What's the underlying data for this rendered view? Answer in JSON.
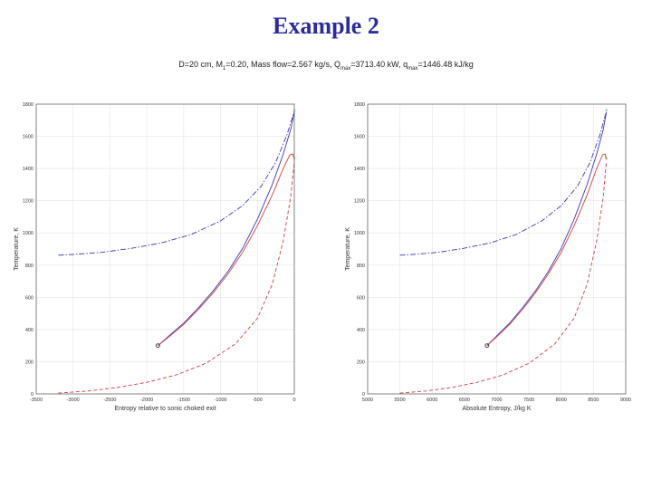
{
  "slide": {
    "title": "Example 2"
  },
  "figure": {
    "title_parts": [
      "D=20 cm, M",
      "1",
      "=0.20, Mass flow=2.567 kg/s, Q",
      "max",
      "=3713.40 kW, q",
      "max",
      "=1446.48 kJ/kg"
    ]
  },
  "colors": {
    "title": "#2b2b9a",
    "blue": "#3a3ab0",
    "red": "#d04040",
    "purple": "#8a3a8a",
    "green": "#4cc44c",
    "grid": "#e4e4e4"
  },
  "chart_data": [
    {
      "type": "line",
      "xlabel": "Entropy relative to sonic choked exit",
      "ylabel": "Temperature, K",
      "xlim": [
        -3500,
        0
      ],
      "ylim": [
        0,
        1800
      ],
      "grid": true,
      "xticks": [
        -3500,
        -3000,
        -2500,
        -2000,
        -1500,
        -1000,
        -500,
        0
      ],
      "xtick_labels": [
        "-3500",
        "-3000",
        "-2500",
        "-2000",
        "-1500",
        "-1000",
        "-500",
        "0"
      ],
      "yticks": [
        0,
        200,
        400,
        600,
        800,
        1000,
        1200,
        1400,
        1600,
        1800
      ],
      "ytick_labels": [
        "0",
        "200",
        "400",
        "600",
        "800",
        "1000",
        "1200",
        "1400",
        "1600",
        "1800"
      ],
      "series": [
        {
          "style": "dashdot",
          "color": "#3a3ab0",
          "x": [
            -3200,
            -3000,
            -2600,
            -2200,
            -1800,
            -1400,
            -1000,
            -700,
            -450,
            -250,
            -100,
            0
          ],
          "y": [
            862,
            866,
            880,
            905,
            938,
            990,
            1075,
            1170,
            1290,
            1440,
            1610,
            1755
          ]
        },
        {
          "style": "dashed",
          "color": "#d04040",
          "x": [
            -3200,
            -2800,
            -2400,
            -2000,
            -1600,
            -1200,
            -800,
            -500,
            -300,
            -150,
            -50,
            0
          ],
          "y": [
            5,
            18,
            40,
            72,
            118,
            190,
            310,
            470,
            680,
            950,
            1220,
            1440
          ]
        },
        {
          "style": "solid",
          "color": "#3a3ab0",
          "x": [
            -1850,
            -1700,
            -1500,
            -1300,
            -1100,
            -900,
            -700,
            -500,
            -300,
            -150,
            -50,
            0
          ],
          "y": [
            300,
            360,
            440,
            535,
            640,
            760,
            905,
            1085,
            1300,
            1490,
            1640,
            1750
          ]
        },
        {
          "style": "solid",
          "color": "#d04040",
          "x": [
            -1850,
            -1700,
            -1500,
            -1300,
            -1100,
            -900,
            -700,
            -500,
            -300,
            -150,
            -60,
            -20,
            0
          ],
          "y": [
            300,
            355,
            432,
            525,
            628,
            745,
            880,
            1045,
            1235,
            1400,
            1485,
            1490,
            1455
          ]
        }
      ],
      "markers": [
        {
          "kind": "circle",
          "color": "#333333",
          "x": -1850,
          "y": 300
        },
        {
          "kind": "star",
          "color": "#4cc44c",
          "x": 0,
          "y": 1755
        },
        {
          "kind": "star",
          "color": "#4cc44c",
          "x": 0,
          "y": 1455
        }
      ]
    },
    {
      "type": "line",
      "xlabel": "Absolute Entropy, J/kg K",
      "ylabel": "Temperature, K",
      "xlim": [
        5000,
        9000
      ],
      "ylim": [
        0,
        1800
      ],
      "grid": true,
      "xticks": [
        5000,
        5500,
        6000,
        6500,
        7000,
        7500,
        8000,
        8500,
        9000
      ],
      "xtick_labels": [
        "5000",
        "5500",
        "6000",
        "6500",
        "7000",
        "7500",
        "8000",
        "8500",
        "9000"
      ],
      "yticks": [
        0,
        200,
        400,
        600,
        800,
        1000,
        1200,
        1400,
        1600,
        1800
      ],
      "ytick_labels": [
        "0",
        "200",
        "400",
        "600",
        "800",
        "1000",
        "1200",
        "1400",
        "1600",
        "1800"
      ],
      "series": [
        {
          "style": "dashdot",
          "color": "#3a3ab0",
          "x": [
            5500,
            5700,
            6100,
            6500,
            6900,
            7300,
            7700,
            8000,
            8250,
            8450,
            8600,
            8700
          ],
          "y": [
            862,
            866,
            880,
            905,
            938,
            990,
            1075,
            1170,
            1290,
            1440,
            1610,
            1755
          ]
        },
        {
          "style": "dashed",
          "color": "#d04040",
          "x": [
            5500,
            5900,
            6300,
            6700,
            7100,
            7500,
            7900,
            8200,
            8400,
            8550,
            8650,
            8700
          ],
          "y": [
            5,
            18,
            40,
            72,
            118,
            190,
            310,
            470,
            680,
            950,
            1220,
            1440
          ]
        },
        {
          "style": "solid",
          "color": "#3a3ab0",
          "x": [
            6850,
            7000,
            7200,
            7400,
            7600,
            7800,
            8000,
            8200,
            8400,
            8550,
            8650,
            8700
          ],
          "y": [
            300,
            360,
            440,
            535,
            640,
            760,
            905,
            1085,
            1300,
            1490,
            1640,
            1750
          ]
        },
        {
          "style": "solid",
          "color": "#d04040",
          "x": [
            6850,
            7000,
            7200,
            7400,
            7600,
            7800,
            8000,
            8200,
            8400,
            8550,
            8640,
            8680,
            8700
          ],
          "y": [
            300,
            355,
            432,
            525,
            628,
            745,
            880,
            1045,
            1235,
            1400,
            1485,
            1490,
            1455
          ]
        }
      ],
      "markers": [
        {
          "kind": "circle",
          "color": "#333333",
          "x": 6850,
          "y": 300
        },
        {
          "kind": "star",
          "color": "#4cc44c",
          "x": 8700,
          "y": 1755
        },
        {
          "kind": "star",
          "color": "#4cc44c",
          "x": 8700,
          "y": 1455
        }
      ]
    }
  ]
}
